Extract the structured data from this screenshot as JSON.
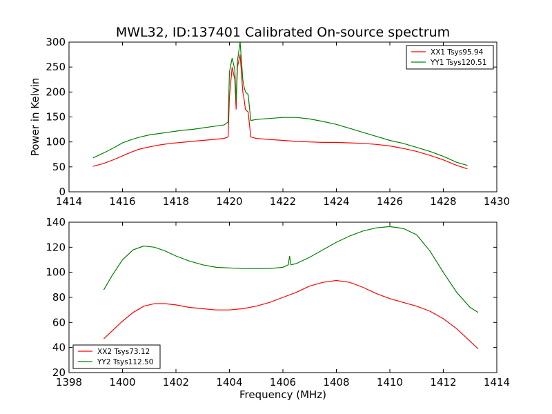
{
  "figure": {
    "title": "MWL32, ID:137401 Calibrated On-source spectrum",
    "xlabel": "Frequency (MHz)"
  },
  "chart_data": [
    {
      "type": "line",
      "xlim": [
        1414,
        1430
      ],
      "ylim": [
        0,
        300
      ],
      "xticks": [
        "1414",
        "1416",
        "1418",
        "1420",
        "1422",
        "1424",
        "1426",
        "1428",
        "1430"
      ],
      "yticks": [
        "0",
        "50",
        "100",
        "150",
        "200",
        "250",
        "300"
      ],
      "xtick_values": [
        1414,
        1416,
        1418,
        1420,
        1422,
        1424,
        1426,
        1428,
        1430
      ],
      "ytick_values": [
        0,
        50,
        100,
        150,
        200,
        250,
        300
      ],
      "ylabel": "Power in Kelvin",
      "xlabel": "",
      "grid": false,
      "legend_position": "top-right",
      "series": [
        {
          "name": "XX1 Tsys95.94",
          "color": "#ff0000",
          "x": [
            1414.9,
            1415.3,
            1415.7,
            1416.0,
            1416.3,
            1416.6,
            1417.0,
            1417.4,
            1417.8,
            1418.2,
            1418.6,
            1419.0,
            1419.4,
            1419.8,
            1419.95,
            1420.0,
            1420.1,
            1420.2,
            1420.25,
            1420.3,
            1420.4,
            1420.5,
            1420.55,
            1420.6,
            1420.7,
            1420.8,
            1421.0,
            1421.5,
            1422.0,
            1422.5,
            1423.0,
            1423.5,
            1424.0,
            1424.5,
            1425.0,
            1425.5,
            1426.0,
            1426.5,
            1427.0,
            1427.5,
            1428.0,
            1428.5,
            1428.9
          ],
          "y": [
            51,
            57,
            65,
            72,
            79,
            85,
            90,
            94,
            97,
            99,
            101,
            103,
            105,
            107,
            110,
            190,
            250,
            225,
            165,
            250,
            275,
            200,
            185,
            165,
            160,
            110,
            107,
            105,
            103,
            101,
            100,
            99,
            99,
            98,
            97,
            95,
            92,
            87,
            81,
            73,
            64,
            53,
            46
          ]
        },
        {
          "name": "YY1 Tsys120.51",
          "color": "#008000",
          "x": [
            1414.9,
            1415.3,
            1415.7,
            1416.0,
            1416.3,
            1416.6,
            1417.0,
            1417.4,
            1417.8,
            1418.2,
            1418.6,
            1419.0,
            1419.4,
            1419.8,
            1419.95,
            1420.0,
            1420.1,
            1420.2,
            1420.25,
            1420.3,
            1420.4,
            1420.5,
            1420.55,
            1420.6,
            1420.7,
            1420.8,
            1421.0,
            1421.5,
            1422.0,
            1422.5,
            1423.0,
            1423.5,
            1424.0,
            1424.5,
            1425.0,
            1425.5,
            1426.0,
            1426.5,
            1427.0,
            1427.5,
            1428.0,
            1428.5,
            1428.9
          ],
          "y": [
            68,
            78,
            89,
            98,
            104,
            109,
            114,
            117,
            120,
            123,
            125,
            128,
            131,
            134,
            140,
            240,
            268,
            245,
            180,
            262,
            300,
            225,
            210,
            200,
            195,
            143,
            145,
            147,
            149,
            149,
            146,
            141,
            135,
            127,
            119,
            111,
            103,
            97,
            89,
            81,
            71,
            59,
            53
          ]
        }
      ]
    },
    {
      "type": "line",
      "xlim": [
        1398,
        1414
      ],
      "ylim": [
        20,
        140
      ],
      "xticks": [
        "1398",
        "1400",
        "1402",
        "1404",
        "1406",
        "1408",
        "1410",
        "1412",
        "1414"
      ],
      "yticks": [
        "20",
        "40",
        "60",
        "80",
        "100",
        "120",
        "140"
      ],
      "xtick_values": [
        1398,
        1400,
        1402,
        1404,
        1406,
        1408,
        1410,
        1412,
        1414
      ],
      "ytick_values": [
        20,
        40,
        60,
        80,
        100,
        120,
        140
      ],
      "ylabel": "",
      "xlabel": "Frequency (MHz)",
      "grid": false,
      "legend_position": "bottom-left",
      "series": [
        {
          "name": "XX2 Tsys73.12",
          "color": "#ff0000",
          "x": [
            1399.3,
            1399.6,
            1400.0,
            1400.4,
            1400.8,
            1401.2,
            1401.6,
            1402.0,
            1402.5,
            1403.0,
            1403.5,
            1404.0,
            1404.5,
            1405.0,
            1405.5,
            1406.0,
            1406.5,
            1407.0,
            1407.5,
            1408.0,
            1408.5,
            1409.0,
            1409.5,
            1410.0,
            1410.5,
            1411.0,
            1411.5,
            1412.0,
            1412.5,
            1413.0,
            1413.3
          ],
          "y": [
            47,
            53,
            61,
            68,
            73,
            75,
            75,
            74,
            72,
            71,
            70,
            70,
            71,
            73,
            76,
            80,
            84,
            89,
            92,
            93.5,
            92,
            88,
            83,
            79,
            76,
            73,
            69,
            63,
            55,
            45,
            39
          ]
        },
        {
          "name": "YY2 Tsys112.50",
          "color": "#008000",
          "x": [
            1399.3,
            1399.6,
            1400.0,
            1400.4,
            1400.8,
            1401.2,
            1401.6,
            1402.0,
            1402.5,
            1403.0,
            1403.5,
            1404.0,
            1404.5,
            1405.0,
            1405.5,
            1406.0,
            1406.2,
            1406.25,
            1406.3,
            1406.5,
            1407.0,
            1407.5,
            1408.0,
            1408.5,
            1409.0,
            1409.5,
            1410.0,
            1410.5,
            1411.0,
            1411.5,
            1412.0,
            1412.5,
            1413.0,
            1413.3
          ],
          "y": [
            86,
            97,
            110,
            118,
            121,
            120,
            117,
            113,
            109,
            106,
            104,
            103.5,
            103,
            103,
            103,
            104,
            106,
            113,
            106,
            107,
            112,
            118,
            124,
            129,
            133,
            135.5,
            136.5,
            135,
            130,
            117,
            100,
            84,
            72,
            68
          ]
        }
      ]
    }
  ]
}
